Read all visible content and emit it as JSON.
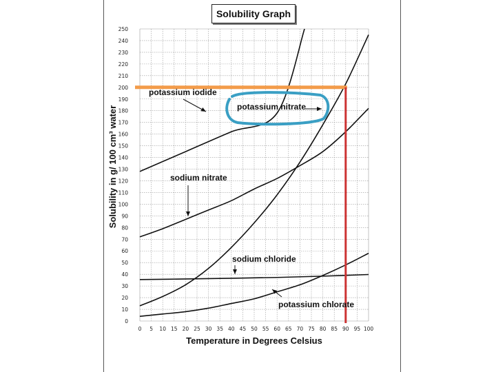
{
  "chart_data": {
    "type": "line",
    "title": "Solubility Graph",
    "xlabel": "Temperature in Degrees Celsius",
    "ylabel": "Solubility in g/ 100 cm³ water",
    "xlim": [
      0,
      100
    ],
    "ylim": [
      0,
      250
    ],
    "x_ticks": [
      0,
      5,
      10,
      15,
      20,
      25,
      30,
      35,
      40,
      45,
      50,
      55,
      60,
      65,
      70,
      75,
      80,
      85,
      90,
      95,
      100
    ],
    "y_ticks": [
      0,
      10,
      20,
      30,
      40,
      50,
      60,
      70,
      80,
      90,
      100,
      110,
      120,
      130,
      140,
      150,
      160,
      170,
      180,
      190,
      200,
      210,
      220,
      230,
      240,
      250
    ],
    "grid": true,
    "series": [
      {
        "name": "potassium iodide",
        "x": [
          0,
          20,
          40,
          60,
          72
        ],
        "y": [
          128,
          145,
          162,
          178,
          250
        ]
      },
      {
        "name": "potassium nitrate",
        "x": [
          0,
          10,
          20,
          30,
          40,
          50,
          60,
          70,
          80,
          90,
          100
        ],
        "y": [
          13,
          21,
          31,
          45,
          63,
          84,
          108,
          136,
          168,
          203,
          245
        ]
      },
      {
        "name": "sodium nitrate",
        "x": [
          0,
          10,
          20,
          30,
          40,
          50,
          60,
          70,
          80,
          90,
          100
        ],
        "y": [
          72,
          79,
          87,
          95,
          103,
          113,
          122,
          133,
          145,
          162,
          182
        ]
      },
      {
        "name": "sodium chloride",
        "x": [
          0,
          20,
          40,
          60,
          80,
          100
        ],
        "y": [
          35.5,
          36,
          36.6,
          37.3,
          38.4,
          39.8
        ]
      },
      {
        "name": "potassium chlorate",
        "x": [
          0,
          10,
          20,
          30,
          40,
          50,
          60,
          70,
          80,
          90,
          100
        ],
        "y": [
          4,
          6,
          8,
          11,
          15,
          19,
          25,
          31,
          39,
          48,
          58
        ]
      }
    ],
    "annotations": {
      "potassium_iodide": "potassium iodide",
      "potassium_nitrate": "potassium nitrate",
      "sodium_nitrate": "sodium nitrate",
      "sodium_chloride": "sodium chloride",
      "potassium_chlorate": "potassium chlorate"
    },
    "highlight": {
      "horizontal_line_y": 200,
      "vertical_line_x": 90,
      "horizontal_color": "#f39c4a",
      "vertical_color": "#cc3333",
      "circle_color": "#3a9fc4"
    }
  }
}
